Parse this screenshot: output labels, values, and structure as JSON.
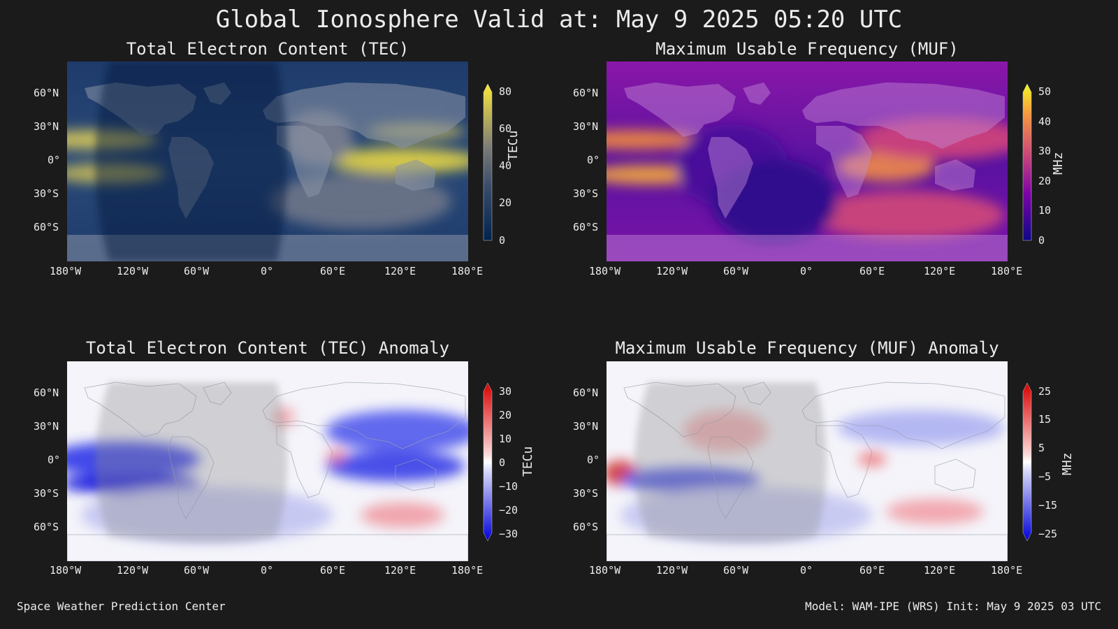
{
  "title": "Global Ionosphere Valid at: May 9 2025 05:20 UTC",
  "lat_ticks": [
    "60°N",
    "30°N",
    "0°",
    "30°S",
    "60°S"
  ],
  "lon_ticks": [
    "180°W",
    "120°W",
    "60°W",
    "0°",
    "60°E",
    "120°E",
    "180°E"
  ],
  "panels": [
    {
      "title": "Total Electron Content (TEC)",
      "unit": "TECu",
      "ticks": [
        "80",
        "60",
        "40",
        "20",
        "0"
      ],
      "scheme": "tec"
    },
    {
      "title": "Maximum Usable Frequency (MUF)",
      "unit": "MHz",
      "ticks": [
        "50",
        "40",
        "30",
        "20",
        "10",
        "0"
      ],
      "scheme": "muf"
    },
    {
      "title": "Total Electron Content (TEC) Anomaly",
      "unit": "TECu",
      "ticks": [
        "30",
        "20",
        "10",
        "0",
        "−10",
        "−20",
        "−30"
      ],
      "scheme": "anom"
    },
    {
      "title": "Maximum Usable Frequency (MUF) Anomaly",
      "unit": "MHz",
      "ticks": [
        "25",
        "15",
        "5",
        "−5",
        "−15",
        "−25"
      ],
      "scheme": "anom"
    }
  ],
  "footer": {
    "left": "Space Weather Prediction Center",
    "right": "Model: WAM-IPE (WRS) Init: May 9 2025 03 UTC"
  }
}
